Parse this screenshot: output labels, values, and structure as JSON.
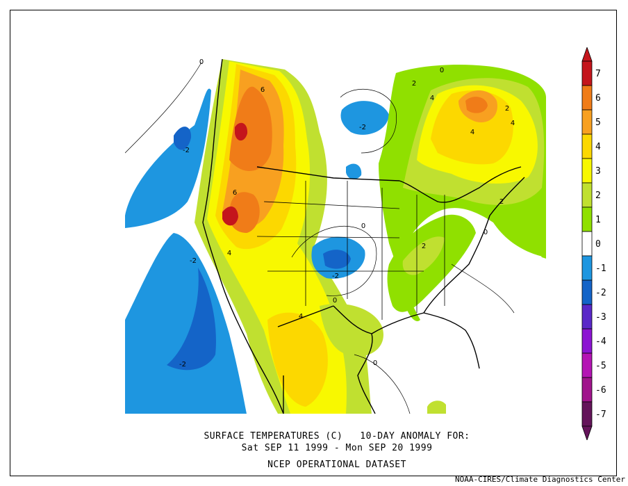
{
  "titles": {
    "line1": "SURFACE TEMPERATURES (C)   10-DAY ANOMALY FOR:",
    "line2": "Sat SEP 11 1999 - Mon SEP 20 1999",
    "line3": "NCEP OPERATIONAL DATASET"
  },
  "credit": "NOAA-CIRES/Climate Diagnostics Center",
  "colorbar": {
    "levels": [
      "7",
      "6",
      "5",
      "4",
      "3",
      "2",
      "1",
      "0",
      "-1",
      "-2",
      "-3",
      "-4",
      "-5",
      "-6",
      "-7"
    ],
    "colors": [
      "#c4151c",
      "#f07c18",
      "#f8a020",
      "#fcd800",
      "#f8f800",
      "#c0e030",
      "#90e000",
      "#ffffff",
      "#1e96e0",
      "#1464c8",
      "#5a28c8",
      "#8c14d2",
      "#b414b4",
      "#a0148c",
      "#64145a"
    ]
  },
  "contour_labels": [
    {
      "text": "0"
    },
    {
      "text": "6"
    },
    {
      "text": "-2"
    },
    {
      "text": "-2"
    },
    {
      "text": "2"
    },
    {
      "text": "4"
    },
    {
      "text": "2"
    },
    {
      "text": "4"
    },
    {
      "text": "6"
    },
    {
      "text": "4"
    },
    {
      "text": "0"
    },
    {
      "text": "2"
    },
    {
      "text": "-2"
    },
    {
      "text": "-2"
    },
    {
      "text": "0"
    },
    {
      "text": "2"
    },
    {
      "text": "0"
    },
    {
      "text": "4"
    },
    {
      "text": "-2"
    },
    {
      "text": "0"
    },
    {
      "text": "0"
    },
    {
      "text": "4"
    }
  ]
}
